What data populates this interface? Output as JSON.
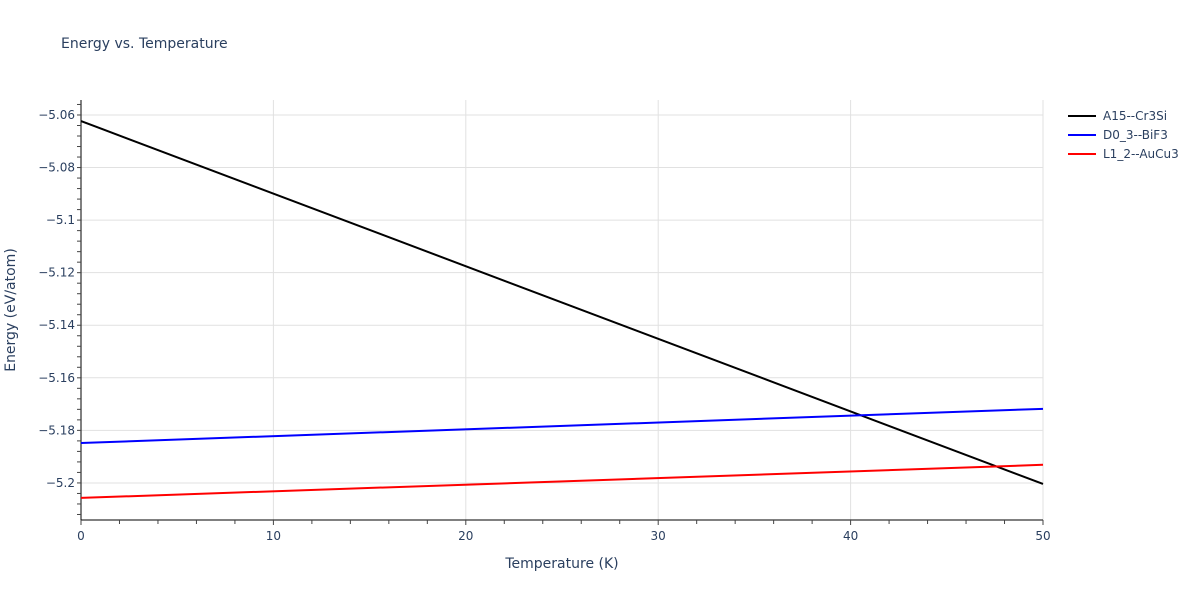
{
  "chart_data": {
    "type": "line",
    "title": "Energy vs. Temperature",
    "xlabel": "Temperature (K)",
    "ylabel": "Energy (eV/atom)",
    "xlim": [
      0,
      50
    ],
    "ylim": [
      -5.2141,
      -5.0543
    ],
    "x_ticks": [
      0,
      10,
      20,
      30,
      40,
      50
    ],
    "y_ticks": [
      -5.06,
      -5.08,
      -5.1,
      -5.12,
      -5.14,
      -5.16,
      -5.18,
      -5.2
    ],
    "y_tick_labels": [
      "−5.06",
      "−5.08",
      "−5.1",
      "−5.12",
      "−5.14",
      "−5.16",
      "−5.18",
      "−5.2"
    ],
    "grid": true,
    "legend_position": "right",
    "x": [
      0,
      50
    ],
    "series": [
      {
        "name": "A15--Cr3Si",
        "color": "#000000",
        "values": [
          -5.0623,
          -5.2004
        ]
      },
      {
        "name": "D0_3--BiF3",
        "color": "#0000ff",
        "values": [
          -5.1848,
          -5.1718
        ]
      },
      {
        "name": "L1_2--AuCu3",
        "color": "#ff0000",
        "values": [
          -5.2057,
          -5.1931
        ]
      }
    ]
  }
}
